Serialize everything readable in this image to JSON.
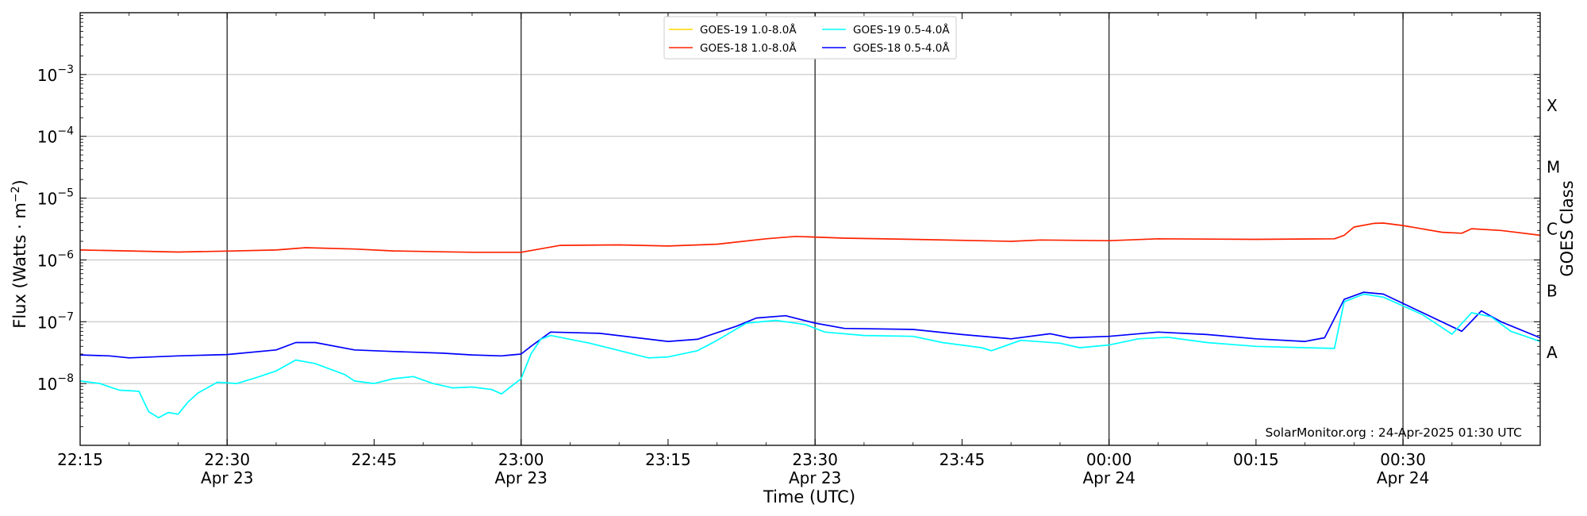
{
  "chart_data": {
    "type": "line",
    "xlabel": "Time (UTC)",
    "ylabel": "Flux (Watts · m",
    "ylabel_superscript": "−2",
    "ylabel_suffix": ")",
    "y2label": "GOES Class",
    "yscale": "log",
    "ylim": [
      1e-09,
      0.01
    ],
    "xlim_minutes": [
      0,
      149
    ],
    "credit": "SolarMonitor.org : 24-Apr-2025 01:30 UTC",
    "y_ticks": [
      {
        "value": 1e-08,
        "base": "10",
        "exp": "−8"
      },
      {
        "value": 1e-07,
        "base": "10",
        "exp": "−7"
      },
      {
        "value": 1e-06,
        "base": "10",
        "exp": "−6"
      },
      {
        "value": 1e-05,
        "base": "10",
        "exp": "−5"
      },
      {
        "value": 0.0001,
        "base": "10",
        "exp": "−4"
      },
      {
        "value": 0.001,
        "base": "10",
        "exp": "−3"
      }
    ],
    "x_ticks": [
      {
        "time": "22:15",
        "date": "",
        "minutes": 0,
        "major": false
      },
      {
        "time": "22:30",
        "date": "Apr 23",
        "minutes": 15,
        "major": true
      },
      {
        "time": "22:45",
        "date": "",
        "minutes": 30,
        "major": false
      },
      {
        "time": "23:00",
        "date": "Apr 23",
        "minutes": 45,
        "major": true
      },
      {
        "time": "23:15",
        "date": "",
        "minutes": 60,
        "major": false
      },
      {
        "time": "23:30",
        "date": "Apr 23",
        "minutes": 75,
        "major": true
      },
      {
        "time": "23:45",
        "date": "",
        "minutes": 90,
        "major": false
      },
      {
        "time": "00:00",
        "date": "Apr 24",
        "minutes": 105,
        "major": true
      },
      {
        "time": "00:15",
        "date": "",
        "minutes": 120,
        "major": false
      },
      {
        "time": "00:30",
        "date": "Apr 24",
        "minutes": 135,
        "major": true
      }
    ],
    "goes_classes": [
      {
        "label": "X",
        "value": 0.0001
      },
      {
        "label": "M",
        "value": 1e-05
      },
      {
        "label": "C",
        "value": 1e-06
      },
      {
        "label": "B",
        "value": 1e-07
      },
      {
        "label": "A",
        "value": 1e-08
      }
    ],
    "legend": [
      {
        "name": "GOES-19 1.0-8.0Å",
        "color": "#ffd700"
      },
      {
        "name": "GOES-19 0.5-4.0Å",
        "color": "#00ffff"
      },
      {
        "name": "GOES-18 1.0-8.0Å",
        "color": "#ff2200"
      },
      {
        "name": "GOES-18 0.5-4.0Å",
        "color": "#0000ff"
      }
    ],
    "series": [
      {
        "name": "GOES-18 1.0-8.0Å",
        "color": "#ff2200",
        "points": [
          [
            0,
            1.45e-06
          ],
          [
            5,
            1.4e-06
          ],
          [
            10,
            1.34e-06
          ],
          [
            15,
            1.39e-06
          ],
          [
            20,
            1.45e-06
          ],
          [
            23,
            1.58e-06
          ],
          [
            28,
            1.5e-06
          ],
          [
            32,
            1.4e-06
          ],
          [
            40,
            1.33e-06
          ],
          [
            45,
            1.33e-06
          ],
          [
            49,
            1.72e-06
          ],
          [
            55,
            1.75e-06
          ],
          [
            60,
            1.68e-06
          ],
          [
            65,
            1.8e-06
          ],
          [
            70,
            2.2e-06
          ],
          [
            73,
            2.4e-06
          ],
          [
            78,
            2.25e-06
          ],
          [
            85,
            2.15e-06
          ],
          [
            95,
            2e-06
          ],
          [
            98,
            2.1e-06
          ],
          [
            105,
            2.05e-06
          ],
          [
            110,
            2.2e-06
          ],
          [
            120,
            2.15e-06
          ],
          [
            128,
            2.2e-06
          ],
          [
            129,
            2.5e-06
          ],
          [
            130,
            3.4e-06
          ],
          [
            132,
            3.9e-06
          ],
          [
            133,
            3.95e-06
          ],
          [
            135,
            3.6e-06
          ],
          [
            139,
            2.8e-06
          ],
          [
            141,
            2.7e-06
          ],
          [
            142,
            3.2e-06
          ],
          [
            145,
            3e-06
          ],
          [
            149,
            2.5e-06
          ]
        ]
      },
      {
        "name": "GOES-18 0.5-4.0Å",
        "color": "#0000ff",
        "points": [
          [
            0,
            2.9e-08
          ],
          [
            3,
            2.8e-08
          ],
          [
            5,
            2.6e-08
          ],
          [
            10,
            2.8e-08
          ],
          [
            15,
            2.95e-08
          ],
          [
            20,
            3.5e-08
          ],
          [
            22,
            4.6e-08
          ],
          [
            24,
            4.6e-08
          ],
          [
            28,
            3.5e-08
          ],
          [
            32,
            3.3e-08
          ],
          [
            37,
            3.1e-08
          ],
          [
            40,
            2.9e-08
          ],
          [
            43,
            2.8e-08
          ],
          [
            45,
            3e-08
          ],
          [
            46,
            4e-08
          ],
          [
            48,
            6.8e-08
          ],
          [
            53,
            6.5e-08
          ],
          [
            60,
            4.8e-08
          ],
          [
            63,
            5.2e-08
          ],
          [
            67,
            8.5e-08
          ],
          [
            69,
            1.15e-07
          ],
          [
            72,
            1.25e-07
          ],
          [
            75,
            9.5e-08
          ],
          [
            78,
            7.8e-08
          ],
          [
            85,
            7.5e-08
          ],
          [
            90,
            6.2e-08
          ],
          [
            95,
            5.3e-08
          ],
          [
            99,
            6.4e-08
          ],
          [
            101,
            5.5e-08
          ],
          [
            105,
            5.8e-08
          ],
          [
            110,
            6.8e-08
          ],
          [
            115,
            6.2e-08
          ],
          [
            120,
            5.3e-08
          ],
          [
            125,
            4.8e-08
          ],
          [
            127,
            5.5e-08
          ],
          [
            129,
            2.3e-07
          ],
          [
            131,
            3e-07
          ],
          [
            133,
            2.8e-07
          ],
          [
            137,
            1.4e-07
          ],
          [
            141,
            7e-08
          ],
          [
            143,
            1.5e-07
          ],
          [
            145,
            1e-07
          ],
          [
            149,
            5.5e-08
          ]
        ]
      },
      {
        "name": "GOES-19 0.5-4.0Å",
        "color": "#00ffff",
        "points": [
          [
            0,
            1.1e-08
          ],
          [
            2,
            1e-08
          ],
          [
            4,
            7.8e-09
          ],
          [
            6,
            7.5e-09
          ],
          [
            7,
            3.5e-09
          ],
          [
            8,
            2.8e-09
          ],
          [
            9,
            3.4e-09
          ],
          [
            10,
            3.2e-09
          ],
          [
            11,
            5e-09
          ],
          [
            12,
            7e-09
          ],
          [
            14,
            1.05e-08
          ],
          [
            16,
            1e-08
          ],
          [
            18,
            1.25e-08
          ],
          [
            20,
            1.6e-08
          ],
          [
            22,
            2.4e-08
          ],
          [
            24,
            2.1e-08
          ],
          [
            27,
            1.4e-08
          ],
          [
            28,
            1.1e-08
          ],
          [
            30,
            1e-08
          ],
          [
            32,
            1.2e-08
          ],
          [
            34,
            1.3e-08
          ],
          [
            36,
            1e-08
          ],
          [
            38,
            8.5e-09
          ],
          [
            40,
            8.8e-09
          ],
          [
            42,
            8e-09
          ],
          [
            43,
            6.8e-09
          ],
          [
            45,
            1.2e-08
          ],
          [
            46,
            3e-08
          ],
          [
            47,
            5.2e-08
          ],
          [
            48,
            6e-08
          ],
          [
            52,
            4.5e-08
          ],
          [
            58,
            2.6e-08
          ],
          [
            60,
            2.7e-08
          ],
          [
            63,
            3.4e-08
          ],
          [
            65,
            5e-08
          ],
          [
            68,
            9.5e-08
          ],
          [
            71,
            1.05e-07
          ],
          [
            74,
            9e-08
          ],
          [
            76,
            6.8e-08
          ],
          [
            80,
            6e-08
          ],
          [
            85,
            5.8e-08
          ],
          [
            88,
            4.6e-08
          ],
          [
            92,
            3.8e-08
          ],
          [
            93,
            3.4e-08
          ],
          [
            96,
            5e-08
          ],
          [
            100,
            4.5e-08
          ],
          [
            102,
            3.8e-08
          ],
          [
            105,
            4.2e-08
          ],
          [
            108,
            5.3e-08
          ],
          [
            111,
            5.6e-08
          ],
          [
            115,
            4.6e-08
          ],
          [
            120,
            4e-08
          ],
          [
            125,
            3.8e-08
          ],
          [
            128,
            3.7e-08
          ],
          [
            129,
            2.1e-07
          ],
          [
            131,
            2.8e-07
          ],
          [
            133,
            2.5e-07
          ],
          [
            137,
            1.3e-07
          ],
          [
            140,
            6.3e-08
          ],
          [
            142,
            1.4e-07
          ],
          [
            144,
            1.2e-07
          ],
          [
            146,
            7e-08
          ],
          [
            149,
            4.8e-08
          ]
        ]
      }
    ]
  }
}
